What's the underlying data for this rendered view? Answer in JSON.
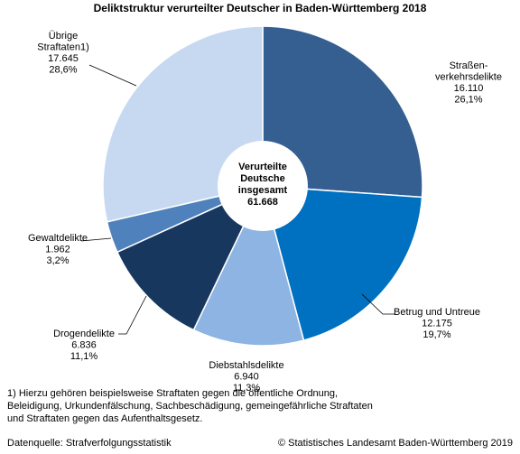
{
  "chart_data": {
    "type": "pie",
    "title": "Deliktstruktur verurteilter Deutscher in Baden-Württemberg 2018",
    "center_label": [
      "Verurteilte",
      "Deutsche",
      "insgesamt",
      "61.668"
    ],
    "slices": [
      {
        "name_lines": [
          "Straßen-",
          "verkehrsdelikte"
        ],
        "value_label": "16.110",
        "percent_label": "26,1%",
        "value": 16110,
        "percent": 26.1,
        "color": "#355e91"
      },
      {
        "name_lines": [
          "Betrug und Untreue"
        ],
        "value_label": "12.175",
        "percent_label": "19,7%",
        "value": 12175,
        "percent": 19.7,
        "color": "#0070c0"
      },
      {
        "name_lines": [
          "Diebstahlsdelikte"
        ],
        "value_label": "6.940",
        "percent_label": "11,3%",
        "value": 6940,
        "percent": 11.3,
        "color": "#8eb4e3"
      },
      {
        "name_lines": [
          "Drogendelikte"
        ],
        "value_label": "6.836",
        "percent_label": "11,1%",
        "value": 6836,
        "percent": 11.1,
        "color": "#17375e"
      },
      {
        "name_lines": [
          "Gewaltdelikte"
        ],
        "value_label": "1.962",
        "percent_label": "3,2%",
        "value": 1962,
        "percent": 3.2,
        "color": "#4f81bd"
      },
      {
        "name_lines": [
          "Übrige",
          "Straftaten1)"
        ],
        "value_label": "17.645",
        "percent_label": "28,6%",
        "value": 17645,
        "percent": 28.6,
        "color": "#c6d9f1"
      }
    ]
  },
  "footnote": "1) Hierzu gehören beispielsweise Straftaten gegen die öffentliche Ordnung,\nBeleidigung, Urkundenfälschung, Sachbeschädigung, gemeingefährliche Straftaten\nund Straftaten gegen das Aufenthaltsgesetz.",
  "source": "Datenquelle: Strafverfolgungsstatistik",
  "copyright": "© Statistisches Landesamt Baden-Württemberg 2019"
}
